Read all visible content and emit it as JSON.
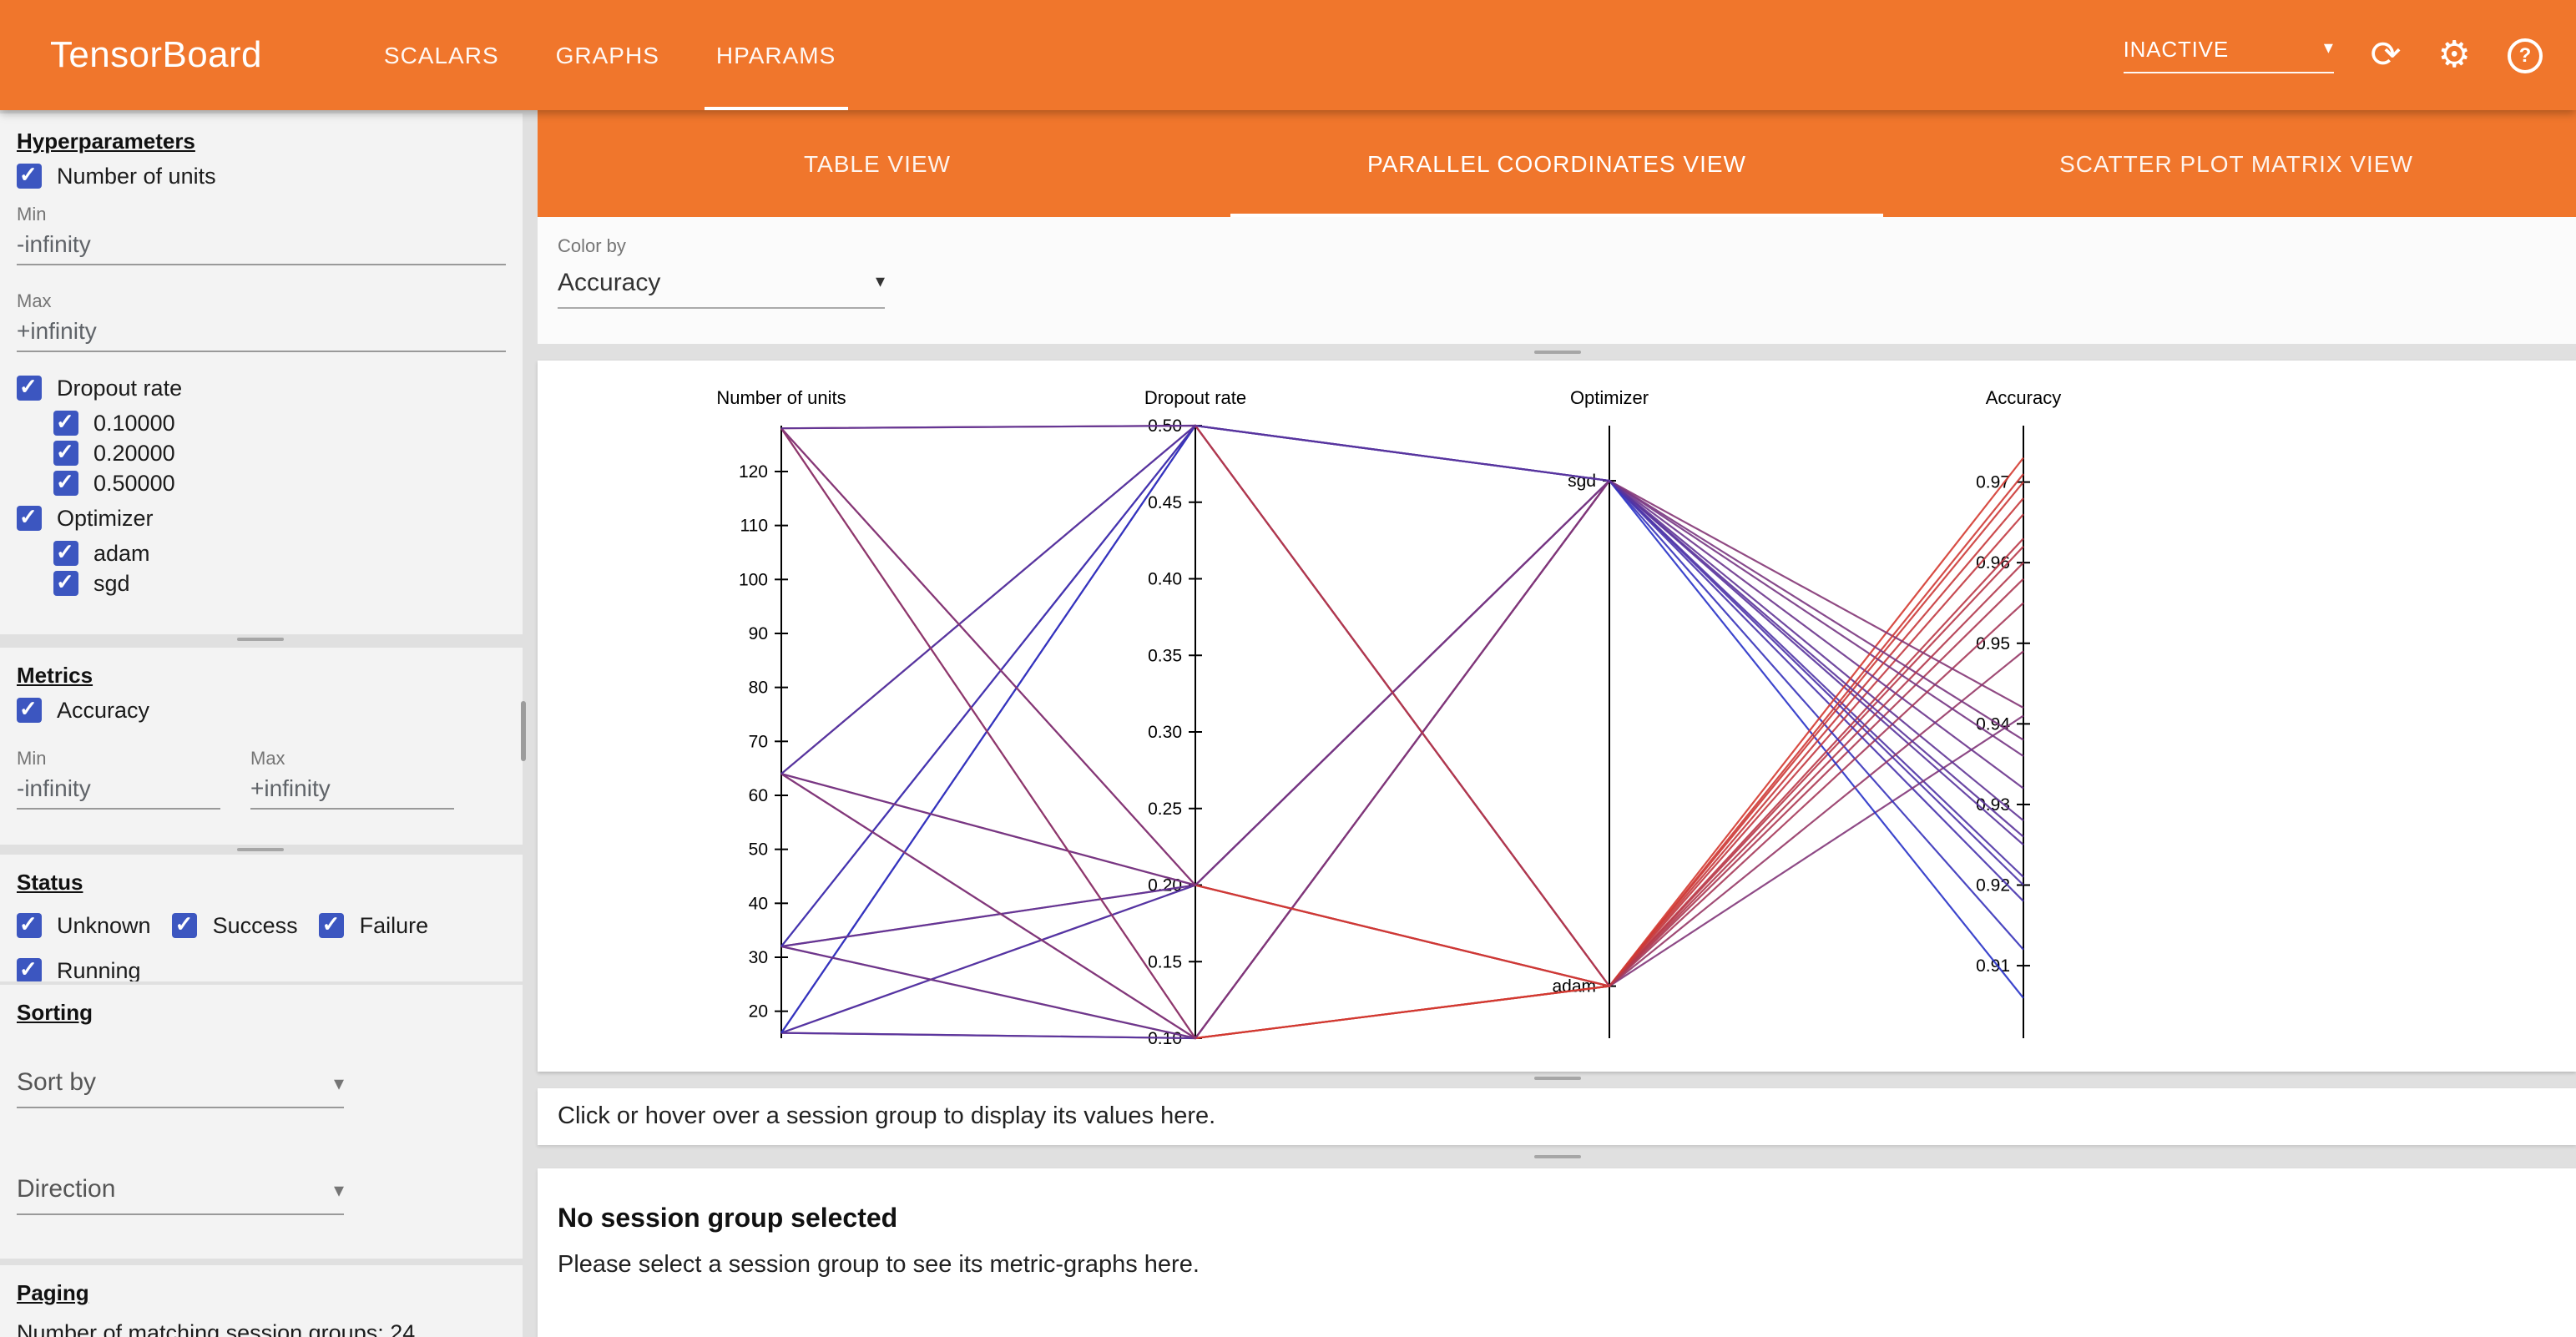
{
  "topbar": {
    "title": "TensorBoard",
    "tabs": [
      {
        "label": "SCALARS"
      },
      {
        "label": "GRAPHS"
      },
      {
        "label": "HPARAMS"
      }
    ],
    "active_tab": "HPARAMS",
    "reload_select": "INACTIVE"
  },
  "views": {
    "tabs": [
      {
        "label": "TABLE VIEW"
      },
      {
        "label": "PARALLEL COORDINATES VIEW"
      },
      {
        "label": "SCATTER PLOT MATRIX VIEW"
      }
    ],
    "active_tab": "PARALLEL COORDINATES VIEW"
  },
  "colorby": {
    "label": "Color by",
    "value": "Accuracy"
  },
  "sidebar": {
    "hyperparameters": {
      "heading": "Hyperparameters",
      "number_of_units": {
        "label": "Number of units",
        "checked": true,
        "min_label": "Min",
        "min_value": "-infinity",
        "max_label": "Max",
        "max_value": "+infinity"
      },
      "dropout_rate": {
        "label": "Dropout rate",
        "checked": true,
        "options": [
          {
            "label": "0.10000",
            "checked": true
          },
          {
            "label": "0.20000",
            "checked": true
          },
          {
            "label": "0.50000",
            "checked": true
          }
        ]
      },
      "optimizer": {
        "label": "Optimizer",
        "checked": true,
        "options": [
          {
            "label": "adam",
            "checked": true
          },
          {
            "label": "sgd",
            "checked": true
          }
        ]
      }
    },
    "metrics": {
      "heading": "Metrics",
      "accuracy": {
        "label": "Accuracy",
        "checked": true
      },
      "min_label": "Min",
      "min_value": "-infinity",
      "max_label": "Max",
      "max_value": "+infinity"
    },
    "status": {
      "heading": "Status",
      "options": [
        {
          "label": "Unknown",
          "checked": true
        },
        {
          "label": "Success",
          "checked": true
        },
        {
          "label": "Failure",
          "checked": true
        },
        {
          "label": "Running",
          "checked": true
        }
      ]
    },
    "sorting": {
      "heading": "Sorting",
      "sort_by": "Sort by",
      "direction": "Direction"
    },
    "paging": {
      "heading": "Paging",
      "summary": "Number of matching session groups: 24"
    }
  },
  "messages": {
    "hover_hint": "Click or hover over a session group to display its values here.",
    "no_selection_title": "No session group selected",
    "no_selection_body": "Please select a session group to see its metric-graphs here."
  },
  "chart_data": {
    "type": "parallel_coordinates",
    "color_by": "Accuracy",
    "color_range": [
      "#2832c8",
      "#d43a30"
    ],
    "axes": [
      {
        "name": "Number of units",
        "key": "units",
        "kind": "numeric",
        "domain": [
          15,
          128.5
        ],
        "decimals": 0,
        "ticks": [
          20,
          30,
          40,
          50,
          60,
          70,
          80,
          90,
          100,
          110,
          120
        ]
      },
      {
        "name": "Dropout rate",
        "key": "dropout",
        "kind": "numeric",
        "domain": [
          0.1,
          0.5
        ],
        "decimals": 2,
        "ticks": [
          0.1,
          0.15,
          0.2,
          0.25,
          0.3,
          0.35,
          0.4,
          0.45,
          0.5
        ]
      },
      {
        "name": "Optimizer",
        "key": "optimizer",
        "kind": "categorical",
        "categories": [
          "sgd",
          "adam"
        ],
        "positions": [
          0.09,
          0.915
        ]
      },
      {
        "name": "Accuracy",
        "key": "accuracy",
        "kind": "numeric",
        "domain": [
          0.901,
          0.977
        ],
        "decimals": 2,
        "ticks": [
          0.91,
          0.92,
          0.93,
          0.94,
          0.95,
          0.96,
          0.97
        ]
      }
    ],
    "sessions": [
      {
        "units": 16,
        "dropout": 0.1,
        "optimizer": "adam",
        "accuracy": 0.962
      },
      {
        "units": 16,
        "dropout": 0.1,
        "optimizer": "sgd",
        "accuracy": 0.921
      },
      {
        "units": 16,
        "dropout": 0.2,
        "optimizer": "adam",
        "accuracy": 0.958
      },
      {
        "units": 16,
        "dropout": 0.2,
        "optimizer": "sgd",
        "accuracy": 0.918
      },
      {
        "units": 16,
        "dropout": 0.5,
        "optimizer": "adam",
        "accuracy": 0.941
      },
      {
        "units": 16,
        "dropout": 0.5,
        "optimizer": "sgd",
        "accuracy": 0.906
      },
      {
        "units": 32,
        "dropout": 0.1,
        "optimizer": "adam",
        "accuracy": 0.966
      },
      {
        "units": 32,
        "dropout": 0.1,
        "optimizer": "sgd",
        "accuracy": 0.928
      },
      {
        "units": 32,
        "dropout": 0.2,
        "optimizer": "adam",
        "accuracy": 0.963
      },
      {
        "units": 32,
        "dropout": 0.2,
        "optimizer": "sgd",
        "accuracy": 0.925
      },
      {
        "units": 32,
        "dropout": 0.5,
        "optimizer": "adam",
        "accuracy": 0.949
      },
      {
        "units": 32,
        "dropout": 0.5,
        "optimizer": "sgd",
        "accuracy": 0.912
      },
      {
        "units": 64,
        "dropout": 0.1,
        "optimizer": "adam",
        "accuracy": 0.97
      },
      {
        "units": 64,
        "dropout": 0.1,
        "optimizer": "sgd",
        "accuracy": 0.936
      },
      {
        "units": 64,
        "dropout": 0.2,
        "optimizer": "adam",
        "accuracy": 0.968
      },
      {
        "units": 64,
        "dropout": 0.2,
        "optimizer": "sgd",
        "accuracy": 0.932
      },
      {
        "units": 64,
        "dropout": 0.5,
        "optimizer": "adam",
        "accuracy": 0.955
      },
      {
        "units": 64,
        "dropout": 0.5,
        "optimizer": "sgd",
        "accuracy": 0.92
      },
      {
        "units": 128,
        "dropout": 0.1,
        "optimizer": "adam",
        "accuracy": 0.973
      },
      {
        "units": 128,
        "dropout": 0.1,
        "optimizer": "sgd",
        "accuracy": 0.942
      },
      {
        "units": 128,
        "dropout": 0.2,
        "optimizer": "adam",
        "accuracy": 0.971
      },
      {
        "units": 128,
        "dropout": 0.2,
        "optimizer": "sgd",
        "accuracy": 0.938
      },
      {
        "units": 128,
        "dropout": 0.5,
        "optimizer": "adam",
        "accuracy": 0.96
      },
      {
        "units": 128,
        "dropout": 0.5,
        "optimizer": "sgd",
        "accuracy": 0.926
      }
    ]
  }
}
